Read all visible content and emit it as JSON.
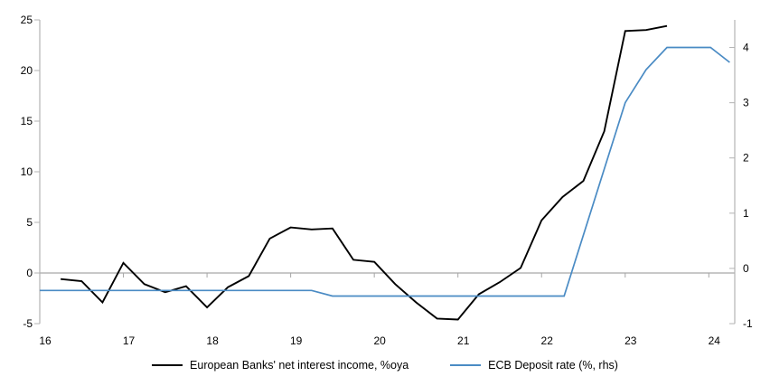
{
  "chart_data": {
    "type": "line",
    "title": "",
    "x_axis": {
      "min": 16,
      "max": 24.31,
      "ticks": [
        16,
        17,
        18,
        19,
        20,
        21,
        22,
        23,
        24
      ]
    },
    "left_axis": {
      "min": -5,
      "max": 25,
      "ticks": [
        25,
        20,
        15,
        10,
        5,
        0,
        -5
      ]
    },
    "right_axis": {
      "min": -1,
      "max": 4.5,
      "ticks": [
        4,
        3,
        2,
        1,
        0,
        -1
      ]
    },
    "zero_line": true,
    "grid": "off",
    "legend_position": "bottom",
    "series": [
      {
        "name": "European Banks' net interest income, %oya",
        "axis": "left",
        "color": "#000000",
        "points": [
          [
            16.25,
            -0.6
          ],
          [
            16.5,
            -0.8
          ],
          [
            16.75,
            -2.9
          ],
          [
            17.0,
            1.0
          ],
          [
            17.25,
            -1.1
          ],
          [
            17.5,
            -1.9
          ],
          [
            17.75,
            -1.3
          ],
          [
            18.0,
            -3.4
          ],
          [
            18.25,
            -1.4
          ],
          [
            18.5,
            -0.3
          ],
          [
            18.75,
            3.4
          ],
          [
            19.0,
            4.5
          ],
          [
            19.25,
            4.3
          ],
          [
            19.5,
            4.4
          ],
          [
            19.75,
            1.3
          ],
          [
            20.0,
            1.1
          ],
          [
            20.25,
            -1.1
          ],
          [
            20.5,
            -2.9
          ],
          [
            20.75,
            -4.5
          ],
          [
            21.0,
            -4.6
          ],
          [
            21.25,
            -2.1
          ],
          [
            21.5,
            -0.9
          ],
          [
            21.75,
            0.5
          ],
          [
            22.0,
            5.2
          ],
          [
            22.25,
            7.5
          ],
          [
            22.5,
            9.1
          ],
          [
            22.75,
            14.0
          ],
          [
            23.0,
            23.9
          ],
          [
            23.25,
            24.0
          ],
          [
            23.5,
            24.4
          ]
        ]
      },
      {
        "name": "ECB Deposit rate (%, rhs)",
        "axis": "right",
        "color": "#4a8bc4",
        "points": [
          [
            16.0,
            -0.4
          ],
          [
            19.25,
            -0.4
          ],
          [
            19.5,
            -0.5
          ],
          [
            22.27,
            -0.5
          ],
          [
            23.0,
            3.0
          ],
          [
            23.25,
            3.6
          ],
          [
            23.5,
            4.0
          ],
          [
            24.02,
            4.0
          ],
          [
            24.25,
            3.73
          ]
        ]
      }
    ]
  },
  "colors": {
    "background": "#ffffff",
    "axis": "#b3b3b3",
    "zero_line": "#a6a6a6",
    "text": "#000000",
    "series_black": "#000000",
    "series_blue": "#4a8bc4"
  }
}
